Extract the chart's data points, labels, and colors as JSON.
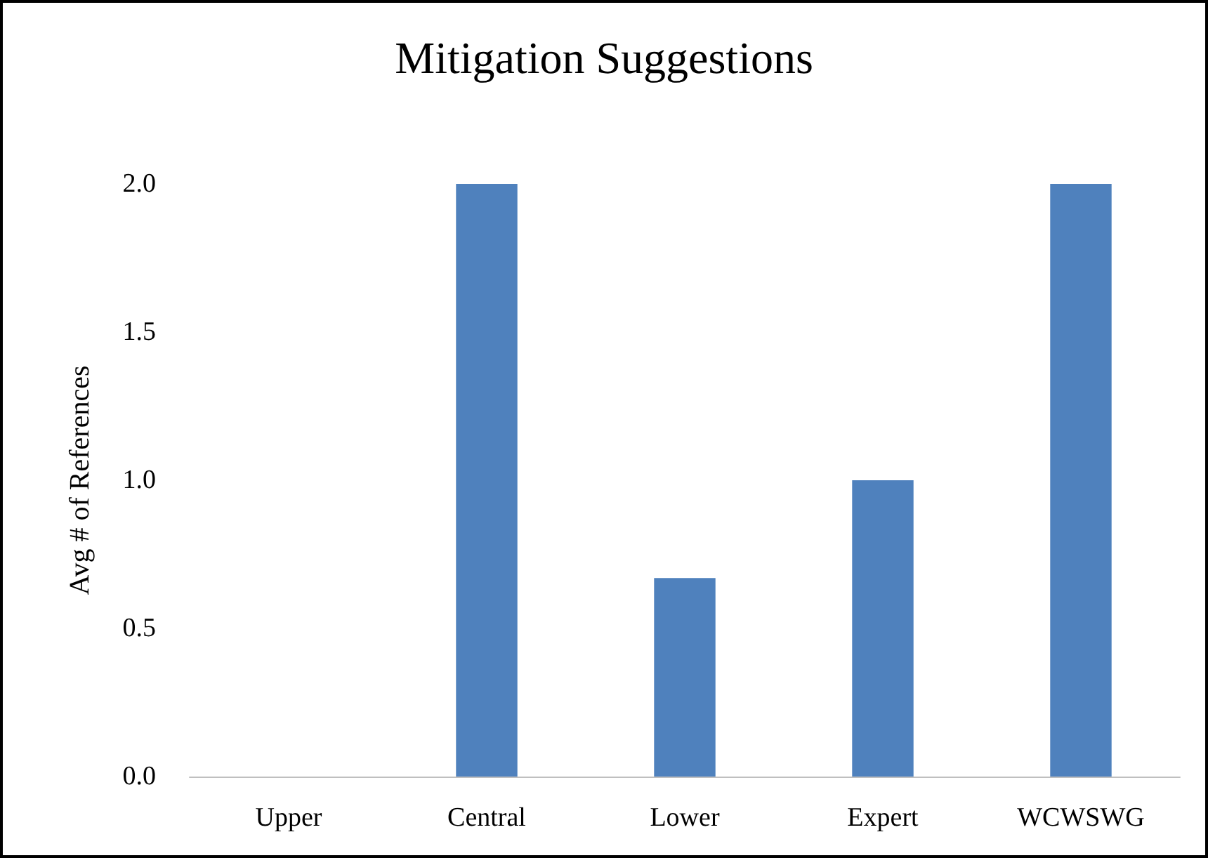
{
  "chart_data": {
    "type": "bar",
    "title": "Mitigation Suggestions",
    "ylabel": "Avg # of References",
    "categories": [
      "Upper",
      "Central",
      "Lower",
      "Expert",
      "WCWSWG"
    ],
    "values": [
      0,
      2,
      0.67,
      1,
      2
    ],
    "color": "#4f81bd",
    "ylim": [
      0,
      2
    ],
    "yticks": [
      {
        "value": 0,
        "label": "0.0"
      },
      {
        "value": 0.5,
        "label": "0.5"
      },
      {
        "value": 1,
        "label": "1.0"
      },
      {
        "value": 1.5,
        "label": "1.5"
      },
      {
        "value": 2,
        "label": "2.0"
      }
    ],
    "grid": false
  }
}
